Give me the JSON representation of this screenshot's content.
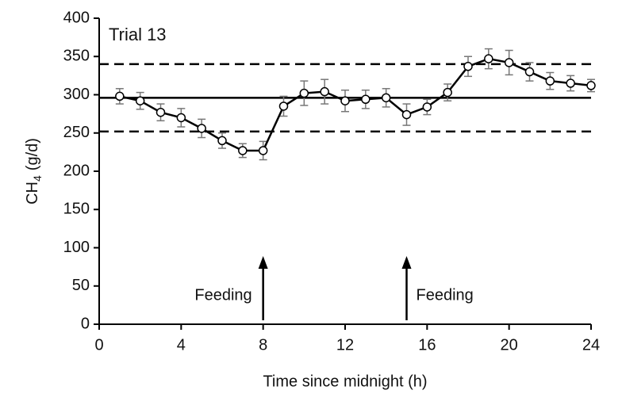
{
  "chart_data": {
    "type": "line",
    "annotation_title": "Trial 13",
    "x_label": "Time since midnight (h)",
    "y_label": {
      "main": "CH",
      "sub": "4",
      "unit": "(g/d)"
    },
    "x": [
      1,
      2,
      3,
      4,
      5,
      6,
      7,
      8,
      9,
      10,
      11,
      12,
      13,
      14,
      15,
      16,
      17,
      18,
      19,
      20,
      21,
      22,
      23,
      24
    ],
    "series": [
      {
        "color": "#000000",
        "values": [
          298,
          292,
          277,
          270,
          256,
          240,
          227,
          227,
          285,
          302,
          304,
          292,
          294,
          296,
          274,
          284,
          303,
          337,
          347,
          342,
          330,
          318,
          315,
          312
        ],
        "errors": [
          10,
          11,
          11,
          12,
          12,
          10,
          9,
          12,
          13,
          16,
          16,
          14,
          12,
          12,
          14,
          10,
          11,
          13,
          13,
          16,
          12,
          11,
          10,
          8
        ]
      }
    ],
    "reference_lines": [
      {
        "y": 296,
        "style": "solid"
      },
      {
        "y": 340,
        "style": "dashed"
      },
      {
        "y": 252,
        "style": "dashed"
      }
    ],
    "annotations": [
      {
        "text": "Feeding",
        "x": 8,
        "side": "left"
      },
      {
        "text": "Feeding",
        "x": 15,
        "side": "right"
      }
    ],
    "xlim": [
      0,
      24
    ],
    "xticks": [
      0,
      4,
      8,
      12,
      16,
      20,
      24
    ],
    "ylim": [
      0,
      400
    ],
    "yticks": [
      0,
      50,
      100,
      150,
      200,
      250,
      300,
      350,
      400
    ],
    "grid": false
  }
}
